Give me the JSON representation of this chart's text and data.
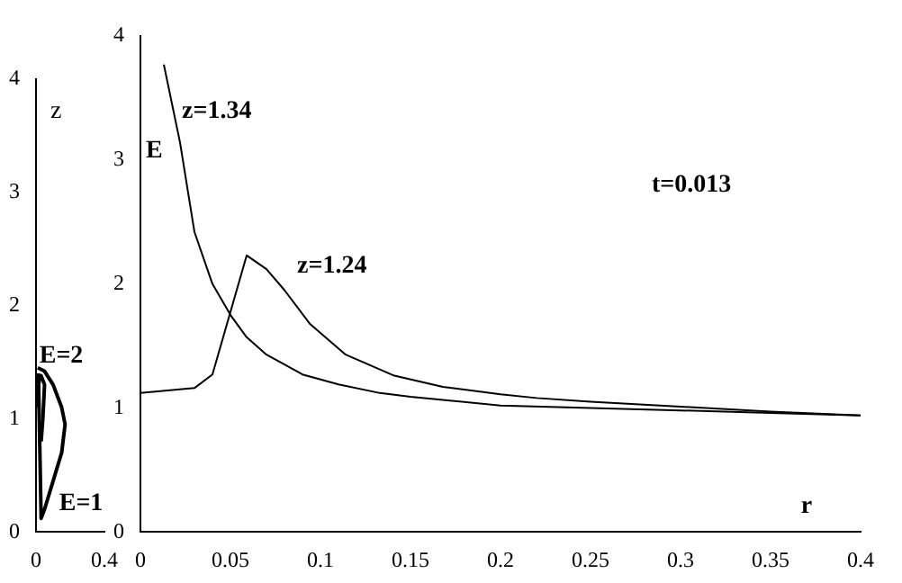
{
  "chart_data": [
    {
      "type": "line",
      "ylabel": "z",
      "xlim": [
        0,
        0.4
      ],
      "xticks": [
        0,
        0.4
      ],
      "ylim": [
        0,
        4
      ],
      "yticks": [
        0,
        1,
        2,
        3,
        4
      ],
      "grid": false,
      "legend": false,
      "marker": "none",
      "line_style": "solid",
      "series": [
        {
          "name": "E=2",
          "color": "#000000",
          "x": [
            0.01,
            0.01,
            0.02,
            0.03,
            0.05,
            0.04,
            0.03
          ],
          "values": [
            1.1,
            1.25,
            1.35,
            1.38,
            1.3,
            1.0,
            0.8
          ]
        },
        {
          "name": "E=1",
          "color": "#000000",
          "x": [
            0.01,
            0.05,
            0.1,
            0.15,
            0.17,
            0.15,
            0.1,
            0.05,
            0.03,
            0.014
          ],
          "values": [
            1.45,
            1.42,
            1.3,
            1.1,
            0.95,
            0.7,
            0.45,
            0.2,
            0.12,
            1.4
          ]
        }
      ]
    },
    {
      "type": "line",
      "xlabel": "r",
      "ylabel": "E",
      "xlim": [
        0,
        0.4
      ],
      "xticks": [
        0,
        0.05,
        0.1,
        0.15,
        0.2,
        0.25,
        0.3,
        0.35,
        0.4
      ],
      "ylim": [
        0,
        4
      ],
      "yticks": [
        0,
        1,
        2,
        3,
        4
      ],
      "grid": false,
      "legend": false,
      "marker": "none",
      "line_style": "solid",
      "annotations": [
        "t=0.013"
      ],
      "series": [
        {
          "name": "z=1.34",
          "color": "#000000",
          "x": [
            0.013,
            0.022,
            0.03,
            0.04,
            0.05,
            0.059,
            0.07,
            0.09,
            0.11,
            0.133,
            0.15,
            0.2,
            0.25,
            0.3,
            0.35,
            0.4
          ],
          "values": [
            3.77,
            3.14,
            2.42,
            2.0,
            1.75,
            1.57,
            1.43,
            1.27,
            1.19,
            1.12,
            1.09,
            1.02,
            1.0,
            0.98,
            0.96,
            0.94
          ]
        },
        {
          "name": "z=1.24",
          "color": "#000000",
          "x": [
            0.0,
            0.03,
            0.04,
            0.059,
            0.07,
            0.08,
            0.094,
            0.114,
            0.141,
            0.168,
            0.2,
            0.22,
            0.25,
            0.3,
            0.35,
            0.4
          ],
          "values": [
            1.12,
            1.16,
            1.27,
            2.23,
            2.12,
            1.95,
            1.68,
            1.43,
            1.26,
            1.17,
            1.11,
            1.08,
            1.05,
            1.01,
            0.97,
            0.94
          ]
        }
      ]
    }
  ]
}
